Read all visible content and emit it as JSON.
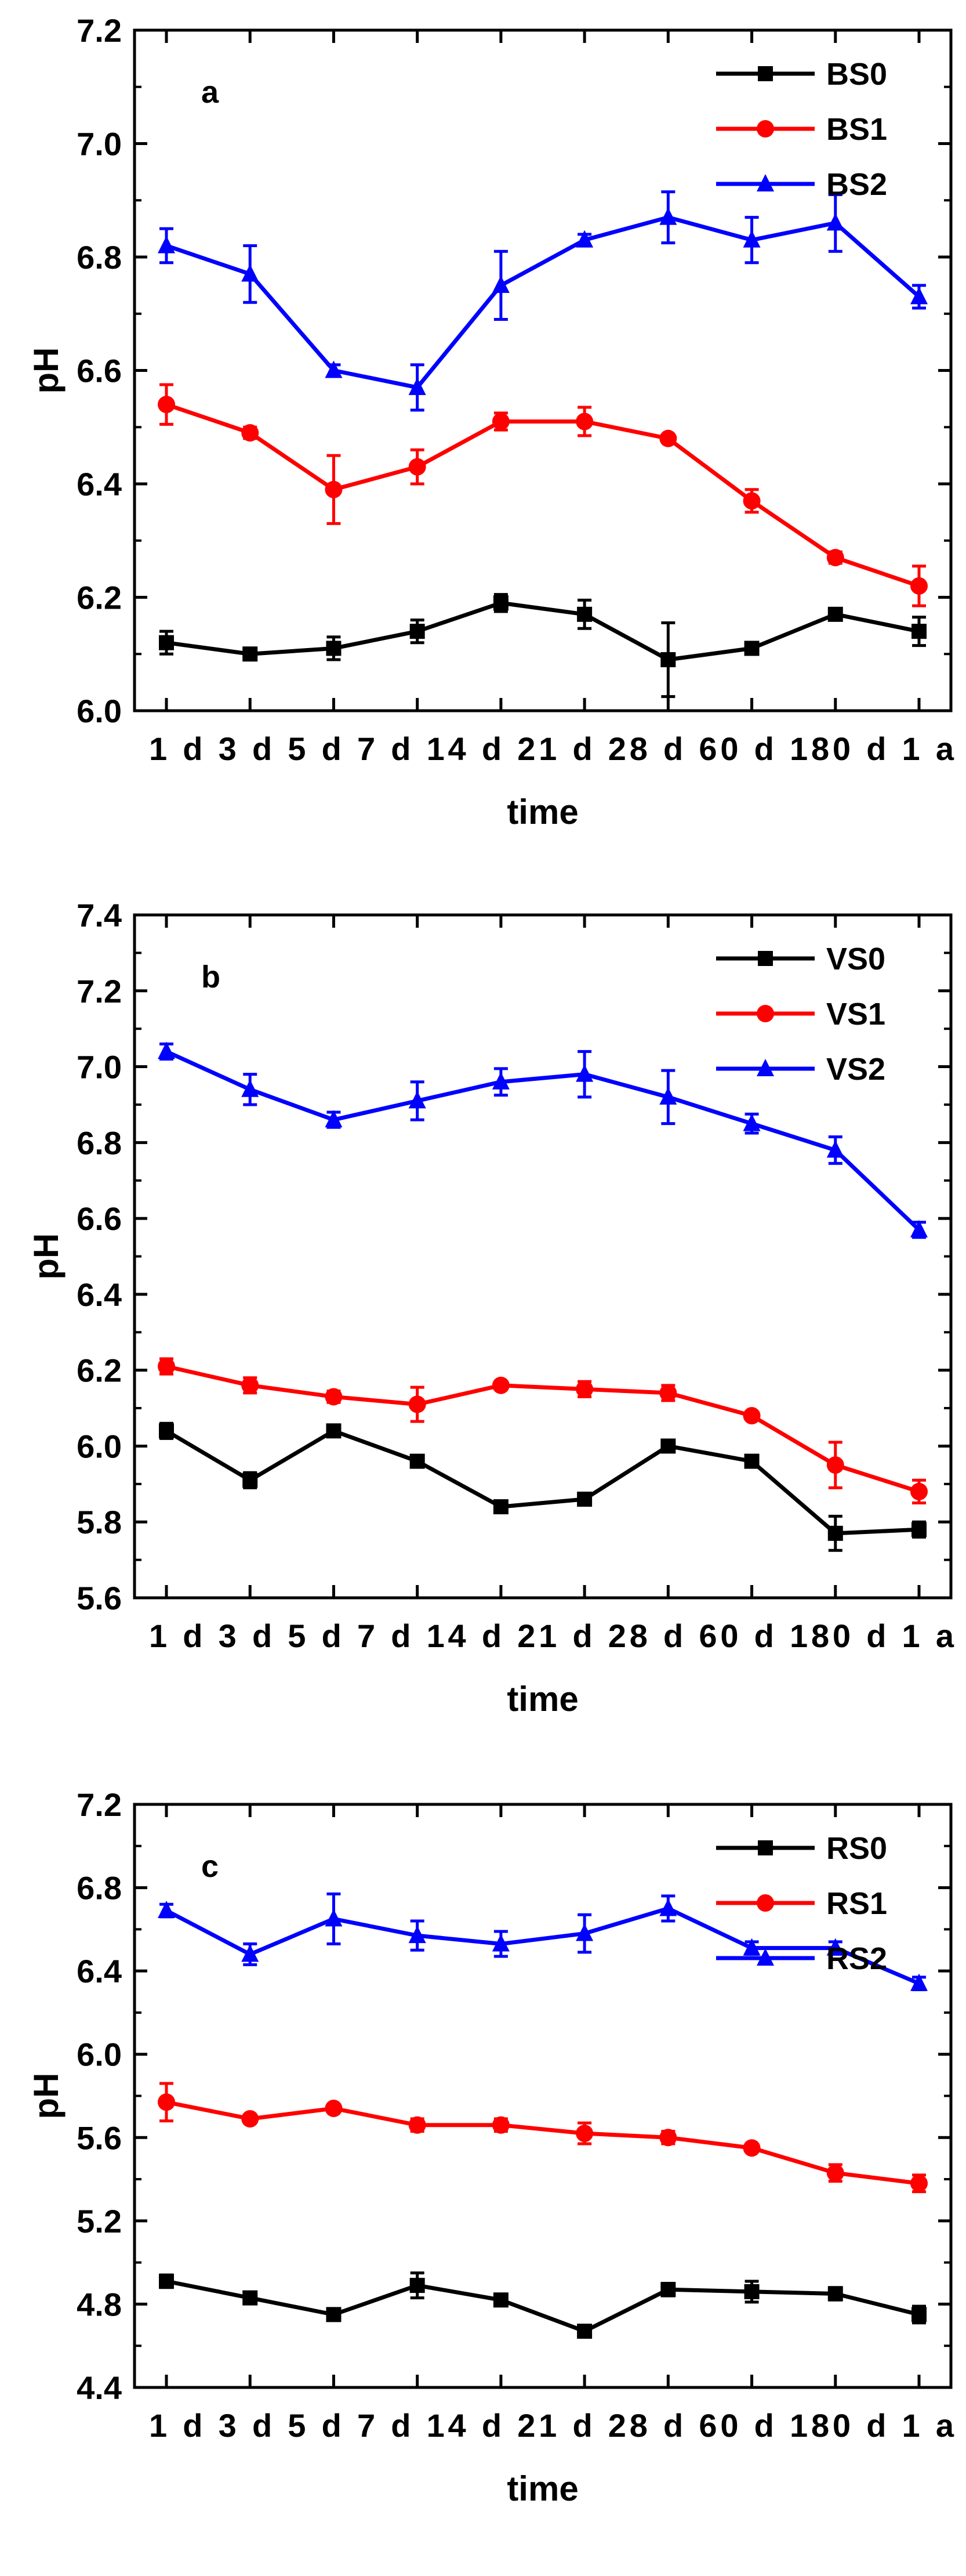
{
  "chart_data": [
    {
      "type": "line",
      "panel_label": "a",
      "title": "",
      "xlabel": "time",
      "ylabel": "pH",
      "x_tick_labels": [
        "1 d",
        "3 d",
        "5 d",
        "7 d",
        "14 d",
        "21 d",
        "28 d",
        "60 d",
        "180 d",
        "1 a"
      ],
      "x_tick_text": [
        "1 d",
        "3 d",
        "5 d",
        "7 d",
        "14 d",
        "21 d",
        "28 d",
        "60 d",
        "180 d",
        "1 a"
      ],
      "ylim": [
        6.0,
        7.2
      ],
      "yticks": [
        "6.0",
        "6.2",
        "6.4",
        "6.6",
        "6.8",
        "7.0",
        "7.2"
      ],
      "legend_position": "top-right",
      "grid": false,
      "series": [
        {
          "name": "BS0",
          "color": "#000000",
          "marker": "square",
          "values": [
            6.12,
            6.1,
            6.11,
            6.14,
            6.19,
            6.17,
            6.09,
            6.11,
            6.17,
            6.14
          ],
          "errors": [
            0.02,
            0.005,
            0.02,
            0.02,
            0.015,
            0.025,
            0.065,
            0.01,
            0.01,
            0.025
          ]
        },
        {
          "name": "BS1",
          "color": "#ff0000",
          "marker": "circle",
          "values": [
            6.54,
            6.49,
            6.39,
            6.43,
            6.51,
            6.51,
            6.48,
            6.37,
            6.27,
            6.22
          ],
          "errors": [
            0.035,
            0.01,
            0.06,
            0.03,
            0.015,
            0.025,
            0.005,
            0.02,
            0.01,
            0.035
          ]
        },
        {
          "name": "BS2",
          "color": "#0000ff",
          "marker": "triangle",
          "values": [
            6.82,
            6.77,
            6.6,
            6.57,
            6.75,
            6.83,
            6.87,
            6.83,
            6.86,
            6.73
          ],
          "errors": [
            0.03,
            0.05,
            0.01,
            0.04,
            0.06,
            0.01,
            0.045,
            0.04,
            0.05,
            0.02
          ]
        }
      ]
    },
    {
      "type": "line",
      "panel_label": "b",
      "title": "",
      "xlabel": "time",
      "ylabel": "pH",
      "x_tick_labels": [
        "1 d",
        "3 d",
        "5 d",
        "7 d",
        "14 d",
        "21 d",
        "28 d",
        "60 d",
        "180 d",
        "1 a"
      ],
      "x_tick_text": [
        "1 d",
        "3 d",
        "5 d",
        "7 d",
        "14 d",
        "21 d",
        "28 d",
        "60 d",
        "180 d",
        "1 a"
      ],
      "ylim": [
        5.6,
        7.4
      ],
      "yticks": [
        "5.6",
        "5.8",
        "6.0",
        "6.2",
        "6.4",
        "6.6",
        "6.8",
        "7.0",
        "7.2",
        "7.4"
      ],
      "legend_position": "top-right",
      "grid": false,
      "series": [
        {
          "name": "VS0",
          "color": "#000000",
          "marker": "square",
          "values": [
            6.04,
            5.91,
            6.04,
            5.96,
            5.84,
            5.86,
            6.0,
            5.96,
            5.77,
            5.78
          ],
          "errors": [
            0.02,
            0.02,
            0.015,
            0.01,
            0.01,
            0.01,
            0.01,
            0.01,
            0.045,
            0.02
          ]
        },
        {
          "name": "VS1",
          "color": "#ff0000",
          "marker": "circle",
          "values": [
            6.21,
            6.16,
            6.13,
            6.11,
            6.16,
            6.15,
            6.14,
            6.08,
            5.95,
            5.88
          ],
          "errors": [
            0.02,
            0.02,
            0.015,
            0.045,
            0.01,
            0.02,
            0.02,
            0.01,
            0.06,
            0.03
          ]
        },
        {
          "name": "VS2",
          "color": "#0000ff",
          "marker": "triangle",
          "values": [
            7.04,
            6.94,
            6.86,
            6.91,
            6.96,
            6.98,
            6.92,
            6.85,
            6.78,
            6.57
          ],
          "errors": [
            0.02,
            0.04,
            0.02,
            0.05,
            0.035,
            0.06,
            0.07,
            0.025,
            0.035,
            0.02
          ]
        }
      ]
    },
    {
      "type": "line",
      "panel_label": "c",
      "title": "",
      "xlabel": "time",
      "ylabel": "pH",
      "x_tick_labels": [
        "1 d",
        "3 d",
        "5 d",
        "7 d",
        "14 d",
        "21 d",
        "28 d",
        "60 d",
        "180 d",
        "1 a"
      ],
      "x_tick_text": [
        "1 d",
        "3 d",
        "5 d",
        "7 d",
        "14 d",
        "21 d",
        "28 d",
        "60 d",
        "180 d",
        "1 a"
      ],
      "ylim": [
        4.4,
        7.2
      ],
      "yticks": [
        "4.4",
        "4.8",
        "5.2",
        "5.6",
        "6.0",
        "6.4",
        "6.8",
        "7.2"
      ],
      "legend_position": "top-right",
      "grid": false,
      "series": [
        {
          "name": "RS0",
          "color": "#000000",
          "marker": "square",
          "values": [
            4.91,
            4.83,
            4.75,
            4.89,
            4.82,
            4.67,
            4.87,
            4.86,
            4.85,
            4.75
          ],
          "errors": [
            0.03,
            0.02,
            0.02,
            0.06,
            0.02,
            0.02,
            0.03,
            0.05,
            0.03,
            0.04
          ]
        },
        {
          "name": "RS1",
          "color": "#ff0000",
          "marker": "circle",
          "values": [
            5.77,
            5.69,
            5.74,
            5.66,
            5.66,
            5.62,
            5.6,
            5.55,
            5.43,
            5.38
          ],
          "errors": [
            0.09,
            0.015,
            0.015,
            0.03,
            0.03,
            0.05,
            0.03,
            0.015,
            0.04,
            0.04
          ]
        },
        {
          "name": "RS2",
          "color": "#0000ff",
          "marker": "triangle",
          "values": [
            6.69,
            6.48,
            6.65,
            6.57,
            6.53,
            6.58,
            6.7,
            6.51,
            6.51,
            6.34
          ],
          "errors": [
            0.03,
            0.05,
            0.12,
            0.07,
            0.06,
            0.09,
            0.06,
            0.03,
            0.03,
            0.03
          ]
        }
      ]
    }
  ]
}
